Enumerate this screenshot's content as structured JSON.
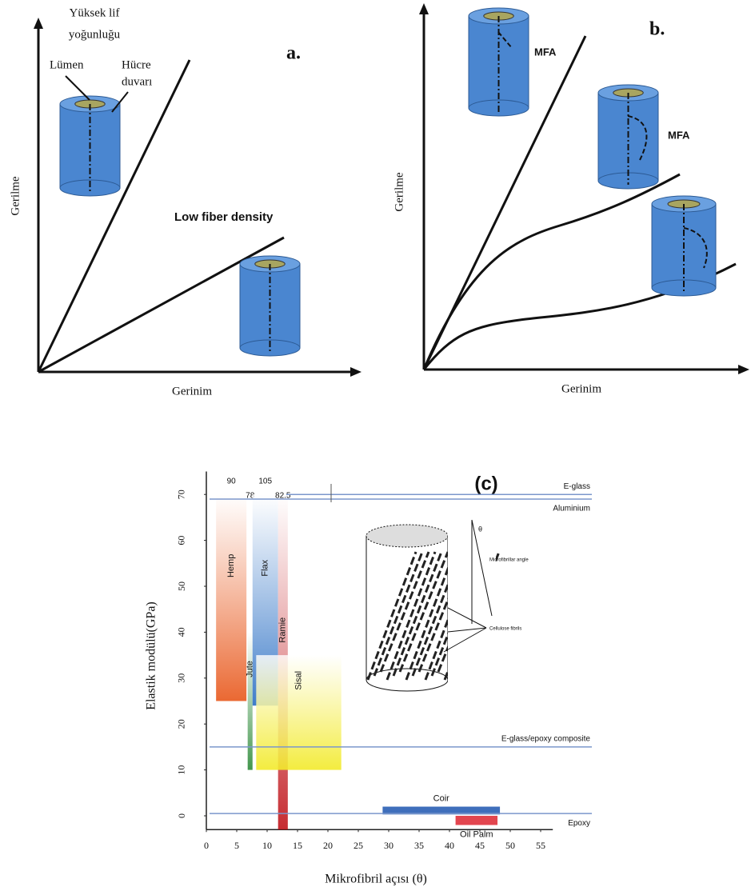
{
  "panel_a": {
    "label": "a.",
    "top_line_label": [
      "Yüksek lif",
      "yoğunluğu"
    ],
    "lumen": "Lümen",
    "cell_wall": [
      "Hücre",
      "duvarı"
    ],
    "low_line_label": "Low fiber density",
    "y_label": "Gerilme",
    "x_label": "Gerinim"
  },
  "panel_b": {
    "label": "b.",
    "mfa_1": "MFA",
    "mfa_2": "MFA",
    "y_label": "Gerilme",
    "x_label": "Gerinim"
  },
  "chart_data": {
    "type": "range",
    "title": "(c)",
    "x_label": "Mikrofibril açısı (θ)",
    "y_label": "Elastik modülü(GPa)",
    "xlim": [
      0,
      57
    ],
    "ylim": [
      -3,
      75
    ],
    "xticks": [
      0,
      5,
      10,
      15,
      20,
      25,
      30,
      35,
      40,
      45,
      50,
      55
    ],
    "yticks": [
      0,
      10,
      20,
      30,
      40,
      50,
      60,
      70
    ],
    "series": [
      {
        "name": "Hemp",
        "color": "#e8581c",
        "x": [
          1.6,
          6.6
        ],
        "y": [
          25,
          70
        ],
        "top_value": 90
      },
      {
        "name": "Jute",
        "color": "#2e8b3a",
        "x": [
          6.8,
          7.6
        ],
        "y": [
          10,
          40
        ],
        "top_value": 78
      },
      {
        "name": "Flax",
        "color": "#2a6fc4",
        "x": [
          7.6,
          11.8
        ],
        "y": [
          24,
          70
        ],
        "top_value": 105
      },
      {
        "name": "Ramie",
        "color": "#c0151b",
        "x": [
          11.8,
          13.4
        ],
        "y": [
          -3,
          70
        ],
        "top_value": 82.5
      },
      {
        "name": "Sisal",
        "color": "#f2ea2a",
        "x": [
          8.2,
          22.2
        ],
        "y": [
          10,
          35
        ]
      },
      {
        "name": "Coir",
        "color": "#2a5fb4",
        "x": [
          29,
          48.3
        ],
        "y": [
          0.3,
          2
        ]
      },
      {
        "name": "Oil Palm",
        "color": "#e0323c",
        "x": [
          41,
          47.9
        ],
        "y": [
          -2,
          0
        ]
      }
    ],
    "reference_lines": [
      {
        "name": "E-glass",
        "value": 70
      },
      {
        "name": "Aluminium",
        "value": 69
      },
      {
        "name": "E-glass/epoxy composite",
        "value": 15
      },
      {
        "name": "Epoxy",
        "value": 0.5
      }
    ],
    "inset": {
      "angle": "θ",
      "angle_label": "Microfibrillar angle",
      "fibrils": "Cellulose fibrils"
    }
  }
}
